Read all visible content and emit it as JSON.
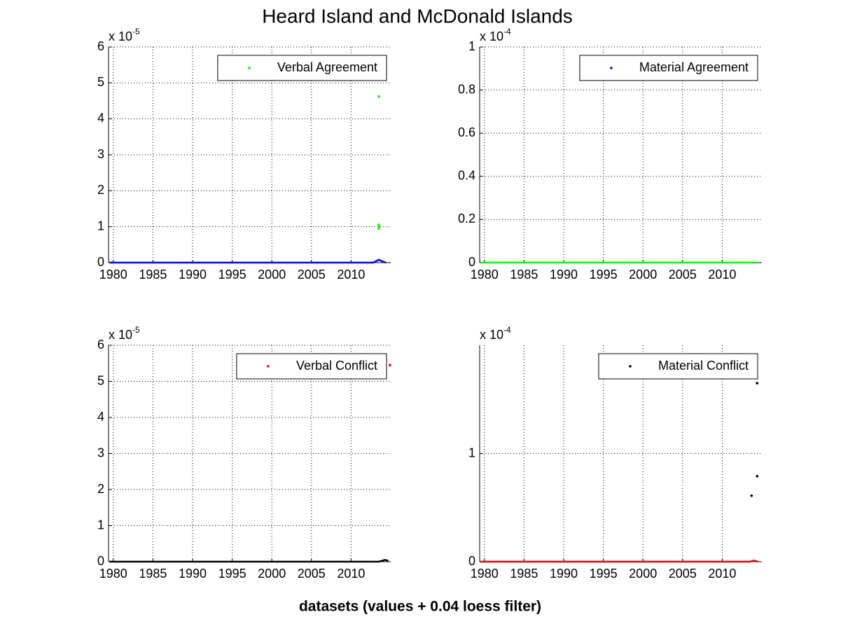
{
  "title": "Heard Island and McDonald Islands",
  "xlabel": "datasets (values + 0.04 loess filter)",
  "chart_data": [
    {
      "type": "scatter",
      "y_multiplier": "x 10",
      "y_exponent": "-5",
      "xlim": [
        1979.4,
        2015
      ],
      "xticks": [
        1980,
        1985,
        1990,
        1995,
        2000,
        2005,
        2010
      ],
      "ylim": [
        0,
        6
      ],
      "yticks": [
        0,
        1,
        2,
        3,
        4,
        5,
        6
      ],
      "grid": true,
      "legend": "upper right",
      "series": [
        {
          "name": "Verbal Agreement",
          "color": "#00ff00",
          "x": [
            2013.5,
            2013.5,
            2013.5,
            2013.5,
            2013.5
          ],
          "values": [
            5.15,
            4.62,
            1.05,
            1.0,
            0.95
          ]
        },
        {
          "color": "#0000ff",
          "style": "line",
          "x": [
            1979.5,
            2012.8,
            2013.5,
            2014,
            2014.4
          ],
          "values": [
            0,
            0,
            0.08,
            0.03,
            0
          ]
        }
      ]
    },
    {
      "type": "scatter",
      "y_multiplier": "x 10",
      "y_exponent": "-4",
      "xlim": [
        1979.4,
        2015
      ],
      "xticks": [
        1980,
        1985,
        1990,
        1995,
        2000,
        2005,
        2010
      ],
      "ylim": [
        0,
        1
      ],
      "yticks": [
        0,
        0.2,
        0.4,
        0.6,
        0.8,
        1
      ],
      "grid": true,
      "legend": "upper right",
      "series": [
        {
          "name": "Material Agreement",
          "color": "#0000ff",
          "x": [
            2014.2
          ],
          "values": [
            0.86
          ]
        },
        {
          "color": "#00ff00",
          "style": "line",
          "x": [
            1979.5,
            2014.5
          ],
          "values": [
            0,
            0
          ]
        }
      ]
    },
    {
      "type": "scatter",
      "y_multiplier": "x 10",
      "y_exponent": "-5",
      "xlim": [
        1979.4,
        2015
      ],
      "xticks": [
        1980,
        1985,
        1990,
        1995,
        2000,
        2005,
        2010
      ],
      "ylim": [
        0,
        6
      ],
      "yticks": [
        0,
        1,
        2,
        3,
        4,
        5,
        6
      ],
      "grid": true,
      "legend": "upper right",
      "series": [
        {
          "name": "Verbal Conflict",
          "color": "#ff0000",
          "x": [
            2014.9
          ],
          "values": [
            5.45
          ]
        },
        {
          "color": "#000000",
          "style": "line",
          "x": [
            1979.5,
            2013.5,
            2014.3,
            2014.7
          ],
          "values": [
            0,
            0,
            0.05,
            0.02
          ]
        }
      ]
    },
    {
      "type": "scatter",
      "y_multiplier": "x 10",
      "y_exponent": "-4",
      "xlim": [
        1979.4,
        2015
      ],
      "xticks": [
        1980,
        1985,
        1990,
        1995,
        2000,
        2005,
        2010
      ],
      "ylim": [
        0,
        2
      ],
      "yticks": [
        0,
        1
      ],
      "grid": true,
      "legend": "upper right",
      "series": [
        {
          "name": "Material Conflict",
          "color": "#000000",
          "x": [
            2014.4,
            2014.4,
            2013.7
          ],
          "values": [
            1.65,
            0.79,
            0.61
          ]
        },
        {
          "color": "#ff0000",
          "style": "line",
          "x": [
            1979.5,
            2013.5,
            2014,
            2014.5
          ],
          "values": [
            0,
            0,
            0.01,
            0
          ]
        }
      ]
    }
  ]
}
